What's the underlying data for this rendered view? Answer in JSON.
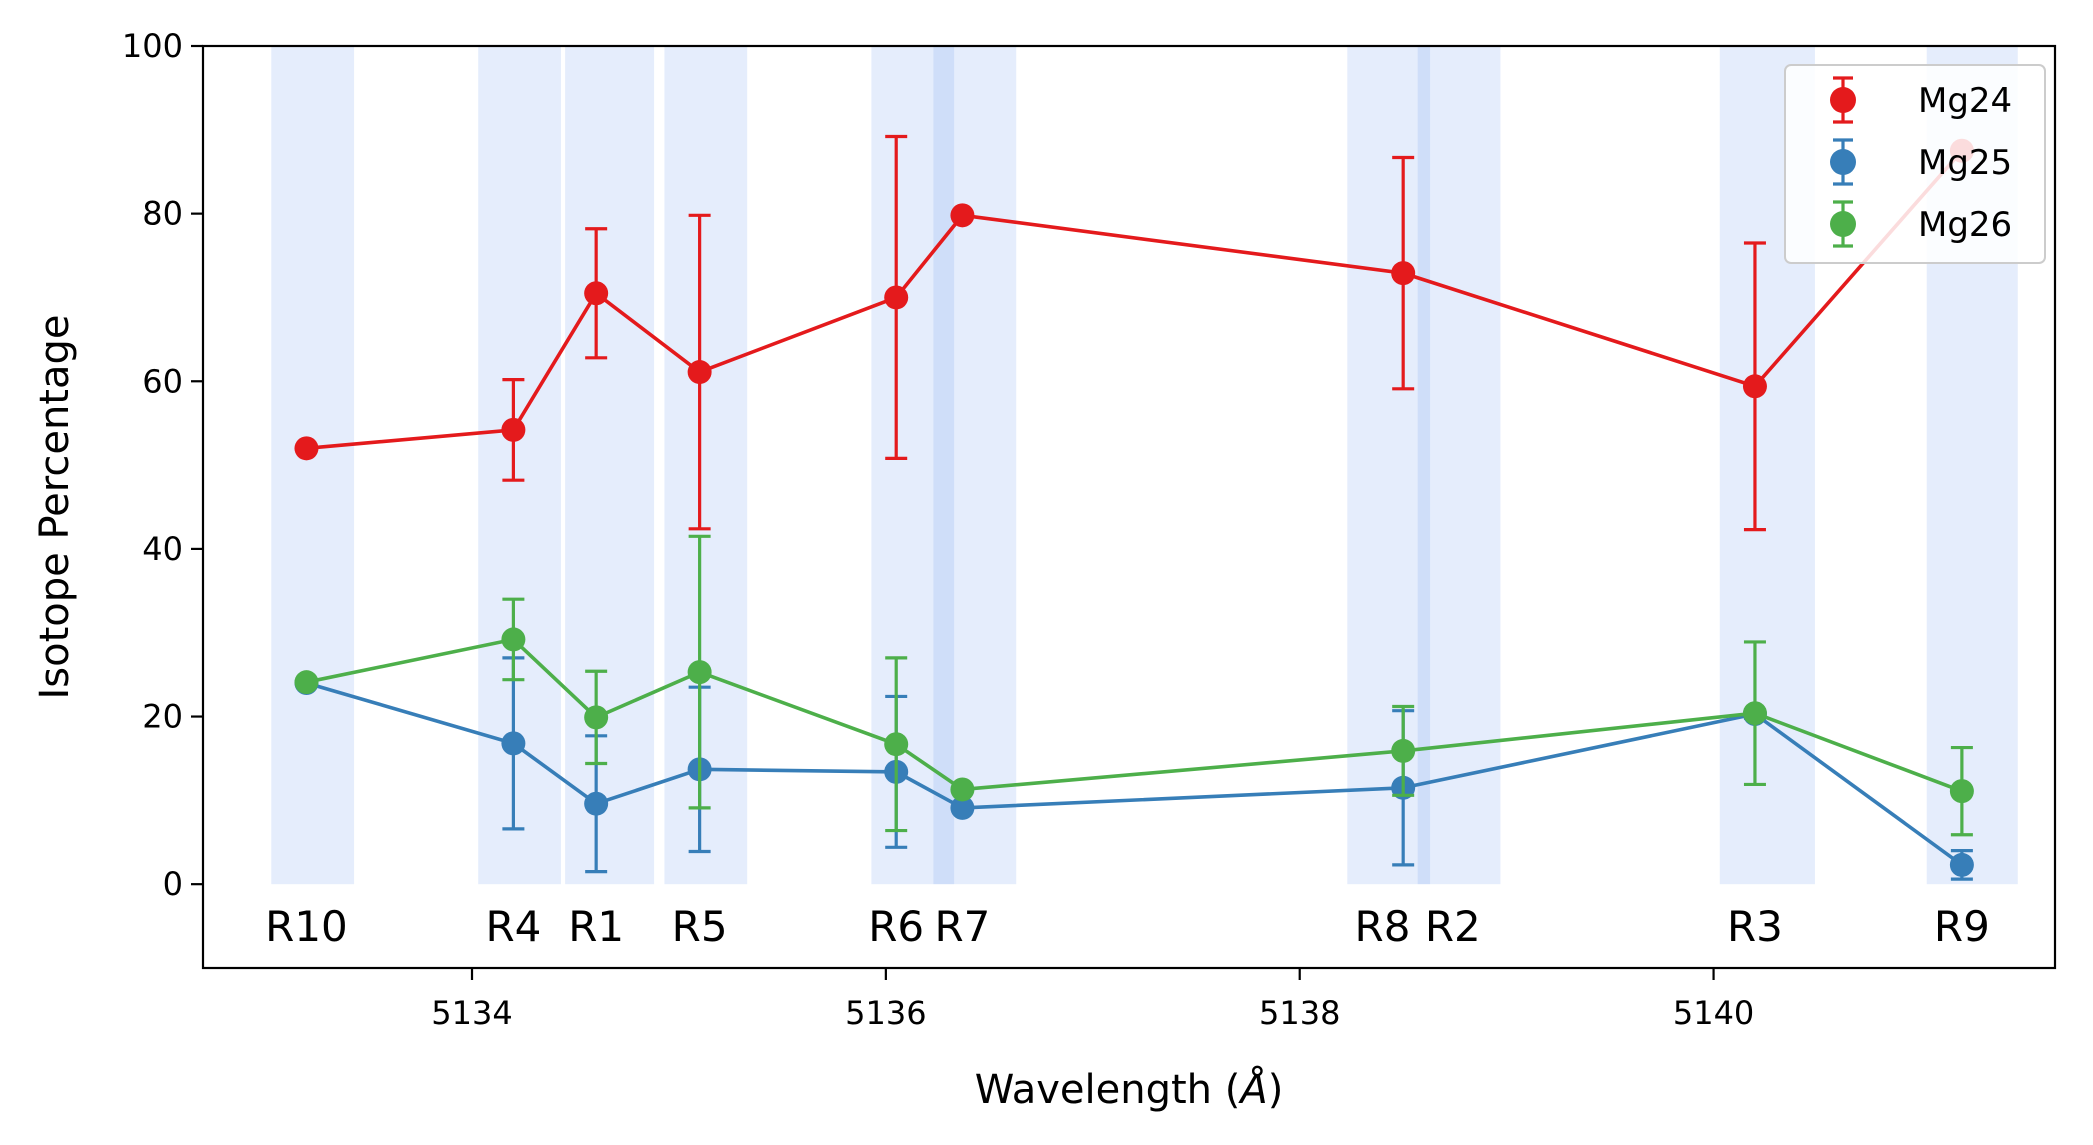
{
  "chart_data": {
    "type": "line",
    "title": "",
    "xlabel": "Wavelength (",
    "xlabel_unit": "Å",
    "xlabel_close": ")",
    "ylabel": "Isotope Percentage",
    "xlim": [
      5132.7,
      5141.65
    ],
    "ylim": [
      -10,
      100
    ],
    "xticks": [
      5134,
      5136,
      5138,
      5140
    ],
    "xtick_labels": [
      "5134",
      "5136",
      "5138",
      "5140"
    ],
    "yticks": [
      0,
      20,
      40,
      60,
      80,
      100
    ],
    "ytick_labels": [
      "0",
      "20",
      "40",
      "60",
      "80",
      "100"
    ],
    "grid": false,
    "legend_position": "top-right",
    "regions": [
      {
        "label": "R10",
        "x0": 5133.03,
        "x1": 5133.43,
        "label_x": 5133.2
      },
      {
        "label": "R4",
        "x0": 5134.03,
        "x1": 5134.43,
        "label_x": 5134.2
      },
      {
        "label": "R1",
        "x0": 5134.45,
        "x1": 5134.88,
        "label_x": 5134.6
      },
      {
        "label": "R5",
        "x0": 5134.93,
        "x1": 5135.33,
        "label_x": 5135.1
      },
      {
        "label": "R6",
        "x0": 5135.93,
        "x1": 5136.33,
        "label_x": 5136.05
      },
      {
        "label": "R7",
        "x0": 5136.23,
        "x1": 5136.63,
        "label_x": 5136.37
      },
      {
        "label": "R8",
        "x0": 5138.23,
        "x1": 5138.63,
        "label_x": 5138.4
      },
      {
        "label": "R2",
        "x0": 5138.57,
        "x1": 5138.97,
        "label_x": 5138.74
      },
      {
        "label": "R3",
        "x0": 5140.03,
        "x1": 5140.49,
        "label_x": 5140.2
      },
      {
        "label": "R9",
        "x0": 5141.03,
        "x1": 5141.47,
        "label_x": 5141.2
      }
    ],
    "x": [
      5133.2,
      5134.2,
      5134.6,
      5135.1,
      5136.05,
      5136.37,
      5138.5,
      5140.2,
      5141.2
    ],
    "series": [
      {
        "name": "Mg24",
        "color": "#e41a1c",
        "values": [
          52,
          54.2,
          70.5,
          61.1,
          70.0,
          79.8,
          72.9,
          59.4,
          87.5
        ],
        "errors": [
          null,
          6,
          7.7,
          18.7,
          19.2,
          null,
          13.8,
          17.1,
          null
        ]
      },
      {
        "name": "Mg25",
        "color": "#377eb8",
        "values": [
          24,
          16.8,
          9.6,
          13.7,
          13.4,
          9.1,
          11.5,
          20.3,
          2.3
        ],
        "errors": [
          null,
          10.2,
          8.1,
          9.8,
          9.0,
          null,
          9.2,
          0.5,
          1.7
        ]
      },
      {
        "name": "Mg26",
        "color": "#4daf4a",
        "values": [
          24.1,
          29.2,
          19.9,
          25.3,
          16.7,
          11.3,
          15.9,
          20.4,
          11.1
        ],
        "errors": [
          null,
          4.8,
          5.5,
          16.2,
          10.3,
          null,
          5.3,
          8.5,
          5.2
        ]
      }
    ]
  }
}
